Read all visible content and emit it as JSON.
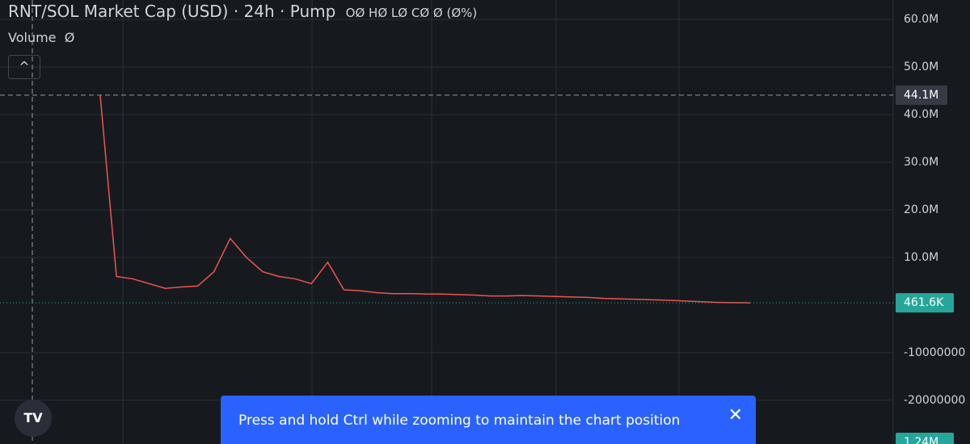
{
  "header": {
    "title": "RNT/SOL Market Cap (USD) · 24h · Pump",
    "ohlc": "OØ HØ LØ CØ Ø (Ø%)",
    "volume_label": "Volume",
    "volume_value": "Ø"
  },
  "chart_data": {
    "type": "line",
    "series": [
      {
        "name": "RNT/SOL",
        "color": "#ef5350",
        "values": [
          44000000,
          6000000,
          5500000,
          4500000,
          3500000,
          3800000,
          4000000,
          7000000,
          14000000,
          10000000,
          7000000,
          6000000,
          5500000,
          4500000,
          9000000,
          3200000,
          3000000,
          2600000,
          2400000,
          2400000,
          2300000,
          2300000,
          2200000,
          2100000,
          1900000,
          1900000,
          2000000,
          1900000,
          1800000,
          1700000,
          1600000,
          1400000,
          1300000,
          1200000,
          1100000,
          1000000,
          850000,
          700000,
          550000,
          500000,
          461600
        ]
      }
    ],
    "ylim": [
      -29200000,
      64100000
    ],
    "yticks": [
      {
        "value": 60000000,
        "label": "60.0M"
      },
      {
        "value": 50000000,
        "label": "50.0M"
      },
      {
        "value": 40000000,
        "label": "40.0M"
      },
      {
        "value": 30000000,
        "label": "30.0M"
      },
      {
        "value": 20000000,
        "label": "20.0M"
      },
      {
        "value": 10000000,
        "label": "10.0M"
      },
      -10000000,
      -20000000
    ],
    "grid": true,
    "crosshair": {
      "value": 44100000,
      "label": "44.1M"
    },
    "last_price": {
      "value": 461600,
      "label": "461.6K",
      "color": "#26a69a"
    },
    "volume_axis_label": "1.24M"
  },
  "toast": {
    "message": "Press and hold Ctrl while zooming to maintain the chart position"
  }
}
